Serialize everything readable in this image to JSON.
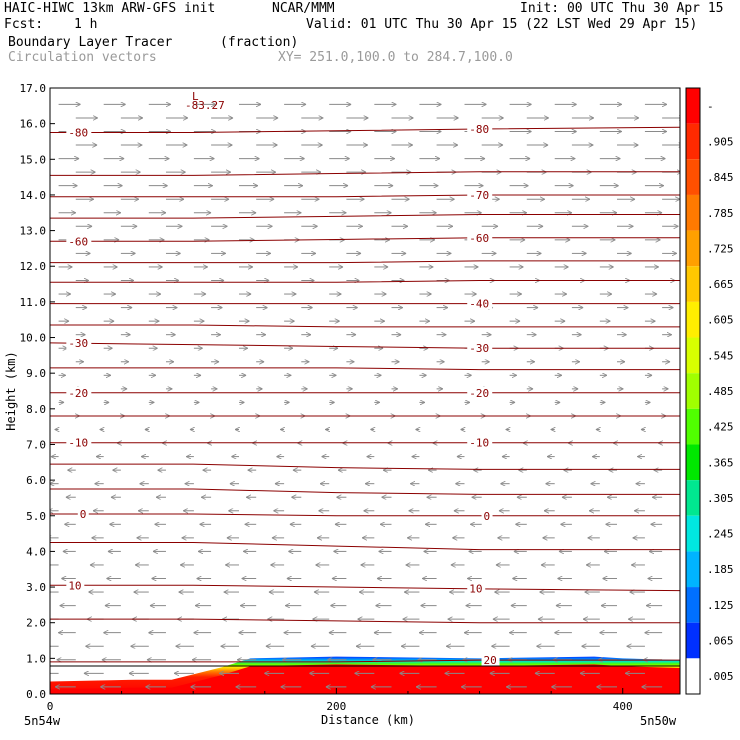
{
  "header": {
    "line1_left": "HAIC-HIWC 13km ARW-GFS init",
    "line1_mid": "NCAR/MMM",
    "line1_right": "Init: 00 UTC Thu 30 Apr 15",
    "fcst_label": "Fcst:",
    "fcst_value": "1 h",
    "valid": "Valid: 01 UTC Thu 30 Apr 15 (22 LST Wed 29 Apr 15)",
    "field": "Boundary Layer Tracer",
    "units": "(fraction)",
    "vectors": "Circulation vectors",
    "xy": "XY= 251.0,100.0 to 284.7,100.0"
  },
  "chart_data": {
    "type": "heatmap",
    "xlabel": "Distance (km)",
    "ylabel": "Height (km)",
    "xlim": [
      0,
      440
    ],
    "ylim": [
      0,
      17
    ],
    "x_ticks": [
      0,
      200,
      400
    ],
    "y_ticks": [
      "0.0",
      "1.0",
      "2.0",
      "3.0",
      "4.0",
      "5.0",
      "6.0",
      "7.0",
      "8.0",
      "9.0",
      "10.0",
      "11.0",
      "12.0",
      "13.0",
      "14.0",
      "15.0",
      "16.0",
      "17.0"
    ],
    "x_end_labels": {
      "left": "5n54w",
      "right": "5n50w"
    },
    "colorbar_labels": [
      "-",
      ".905",
      ".845",
      ".785",
      ".725",
      ".665",
      ".605",
      ".545",
      ".485",
      ".425",
      ".365",
      ".305",
      ".245",
      ".185",
      ".125",
      ".065",
      ".005"
    ],
    "colorbar_colors": [
      "#ff0000",
      "#ff2a00",
      "#ff5000",
      "#ff7a00",
      "#ffa000",
      "#ffc800",
      "#ffee00",
      "#d8ff00",
      "#a0ff00",
      "#50ff00",
      "#00e800",
      "#00e890",
      "#00e8e0",
      "#00b4ff",
      "#0070ff",
      "#0030ff",
      "#ffffff"
    ],
    "temperature_contours": [
      {
        "label": "-80",
        "y": [
          15.75,
          15.75,
          15.8,
          15.85,
          15.9
        ]
      },
      {
        "label": "",
        "y": [
          14.55,
          14.55,
          14.6,
          14.65,
          14.65
        ]
      },
      {
        "label": "-70",
        "y": [
          13.95,
          13.95,
          13.95,
          14.0,
          14.0
        ]
      },
      {
        "label": "",
        "y": [
          13.35,
          13.35,
          13.4,
          13.45,
          13.45
        ]
      },
      {
        "label": "-60",
        "y": [
          12.7,
          12.7,
          12.75,
          12.8,
          12.8
        ]
      },
      {
        "label": "",
        "y": [
          12.1,
          12.1,
          12.1,
          12.15,
          12.15
        ]
      },
      {
        "label": "",
        "y": [
          11.55,
          11.55,
          11.55,
          11.6,
          11.6
        ]
      },
      {
        "label": "-40",
        "y": [
          10.95,
          10.95,
          10.95,
          10.95,
          10.95
        ]
      },
      {
        "label": "",
        "y": [
          10.35,
          10.35,
          10.3,
          10.3,
          10.3
        ]
      },
      {
        "label": "-30",
        "y": [
          9.85,
          9.8,
          9.75,
          9.7,
          9.7
        ]
      },
      {
        "label": "",
        "y": [
          9.15,
          9.15,
          9.15,
          9.1,
          9.1
        ]
      },
      {
        "label": "-20",
        "y": [
          8.45,
          8.45,
          8.45,
          8.45,
          8.45
        ]
      },
      {
        "label": "",
        "y": [
          7.8,
          7.8,
          7.8,
          7.8,
          7.8
        ]
      },
      {
        "label": "-10",
        "y": [
          7.05,
          7.05,
          7.05,
          7.05,
          7.05
        ]
      },
      {
        "label": "",
        "y": [
          6.45,
          6.45,
          6.35,
          6.3,
          6.3
        ]
      },
      {
        "label": "",
        "y": [
          5.75,
          5.75,
          5.65,
          5.6,
          5.6
        ]
      },
      {
        "label": "0",
        "y": [
          5.05,
          5.05,
          5.0,
          5.0,
          5.0
        ]
      },
      {
        "label": "",
        "y": [
          4.25,
          4.25,
          4.15,
          4.05,
          4.05
        ]
      },
      {
        "label": "10",
        "y": [
          3.05,
          3.05,
          3.0,
          2.95,
          2.9
        ]
      },
      {
        "label": "",
        "y": [
          2.1,
          2.1,
          2.05,
          2.0,
          2.0
        ]
      },
      {
        "label": "20",
        "y": [
          0.9,
          0.9,
          0.9,
          0.95,
          0.95
        ]
      }
    ],
    "contour_x": [
      0,
      100,
      200,
      300,
      440
    ],
    "contour_label_positions": [
      {
        "label": "-80",
        "x": [
          10,
          290
        ]
      },
      {
        "label": "-70",
        "x": [
          290
        ]
      },
      {
        "label": "-60",
        "x": [
          10,
          290
        ]
      },
      {
        "label": "-40",
        "x": [
          290
        ]
      },
      {
        "label": "-30",
        "x": [
          10,
          290
        ]
      },
      {
        "label": "-20",
        "x": [
          10,
          290
        ]
      },
      {
        "label": "-10",
        "x": [
          10,
          290
        ]
      },
      {
        "label": "0",
        "x": [
          18,
          300
        ]
      },
      {
        "label": "10",
        "x": [
          10,
          290
        ]
      },
      {
        "label": "20",
        "x": [
          300
        ]
      }
    ],
    "minimum": {
      "label": "L",
      "value": "-83.27",
      "x": 98,
      "y": 16.7
    },
    "tracer_top_km": [
      [
        0,
        0.35
      ],
      [
        60,
        0.4
      ],
      [
        85,
        0.4
      ],
      [
        120,
        0.75
      ],
      [
        140,
        1.0
      ],
      [
        200,
        1.05
      ],
      [
        300,
        1.0
      ],
      [
        380,
        1.05
      ],
      [
        400,
        1.0
      ],
      [
        440,
        0.95
      ]
    ],
    "winds": {
      "upper_direction": "east",
      "lower_direction": "west",
      "transition_km": 7.5
    }
  }
}
